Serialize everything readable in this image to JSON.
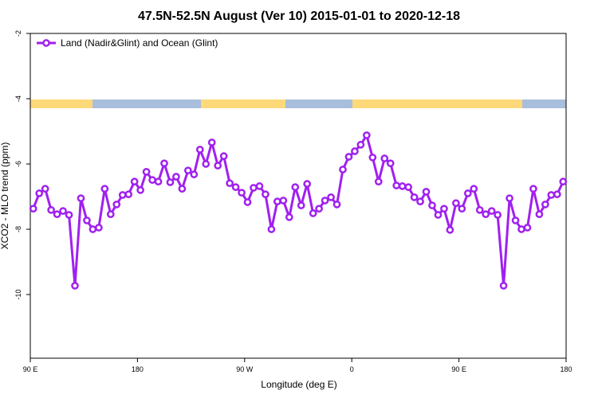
{
  "chart_data": {
    "type": "line",
    "title": "47.5N-52.5N August (Ver 10)   2015-01-01 to 2020-12-18",
    "xlabel": "Longitude (deg E)",
    "ylabel": "XCO2 - MLO trend (ppm)",
    "xlim": [
      90,
      540
    ],
    "ylim": [
      -12,
      -2
    ],
    "xticks": [
      {
        "value": 90,
        "label": "90 E"
      },
      180,
      {
        "value": 270,
        "label": "90 W"
      },
      {
        "value": 360,
        "label": "0"
      },
      {
        "value": 450,
        "label": "90 E"
      },
      {
        "value": 540,
        "label": "180"
      }
    ],
    "yticks": [
      -2,
      -4,
      -6,
      -8,
      -10
    ],
    "legend": "top-left",
    "x": [
      92.5,
      97.5,
      102.5,
      107.5,
      112.5,
      117.5,
      122.5,
      127.5,
      132.5,
      137.5,
      142.5,
      147.5,
      152.5,
      157.5,
      162.5,
      167.5,
      172.5,
      177.5,
      182.5,
      187.5,
      192.5,
      197.5,
      202.5,
      207.5,
      212.5,
      217.5,
      222.5,
      227.5,
      232.5,
      237.5,
      242.5,
      247.5,
      252.5,
      257.5,
      262.5,
      267.5,
      272.5,
      277.5,
      282.5,
      287.5,
      292.5,
      297.5,
      302.5,
      307.5,
      312.5,
      317.5,
      322.5,
      327.5,
      332.5,
      337.5,
      342.5,
      347.5,
      352.5,
      357.5,
      362.5,
      367.5,
      372.5,
      377.5,
      382.5,
      387.5,
      392.5,
      397.5,
      402.5,
      407.5,
      412.5,
      417.5,
      422.5,
      427.5,
      432.5,
      437.5,
      442.5,
      447.5,
      452.5,
      457.5,
      462.5,
      467.5,
      472.5,
      477.5,
      482.5,
      487.5,
      492.5,
      497.5,
      502.5,
      507.5,
      512.5,
      517.5,
      522.5,
      527.5,
      532.5,
      537.5
    ],
    "series": [
      {
        "name": "Land (Nadir&Glint) and Ocean (Glint)",
        "color": "#a020f0",
        "values": [
          -7.37,
          -6.9,
          -6.76,
          -7.41,
          -7.54,
          -7.44,
          -7.56,
          -9.73,
          -7.05,
          -7.73,
          -8.0,
          -7.95,
          -6.76,
          -7.54,
          -7.24,
          -6.95,
          -6.93,
          -6.54,
          -6.8,
          -6.24,
          -6.49,
          -6.54,
          -5.98,
          -6.56,
          -6.39,
          -6.76,
          -6.2,
          -6.32,
          -5.56,
          -6.0,
          -5.34,
          -6.05,
          -5.76,
          -6.59,
          -6.71,
          -6.88,
          -7.17,
          -6.73,
          -6.68,
          -6.93,
          -8.0,
          -7.15,
          -7.12,
          -7.63,
          -6.71,
          -7.27,
          -6.61,
          -7.51,
          -7.37,
          -7.12,
          -7.02,
          -7.24,
          -6.17,
          -5.78,
          -5.61,
          -5.41,
          -5.12,
          -5.8,
          -6.54,
          -5.83,
          -5.98,
          -6.66,
          -6.68,
          -6.71,
          -7.02,
          -7.15,
          -6.85,
          -7.27,
          -7.56,
          -7.37,
          -8.02,
          -7.2,
          -7.37,
          -6.9,
          -6.76,
          -7.41,
          -7.54,
          -7.44,
          -7.56,
          -9.73,
          -7.05,
          -7.73,
          -8.0,
          -7.95,
          -6.76,
          -7.54,
          -7.24,
          -6.95,
          -6.93,
          -6.54
        ]
      }
    ]
  }
}
